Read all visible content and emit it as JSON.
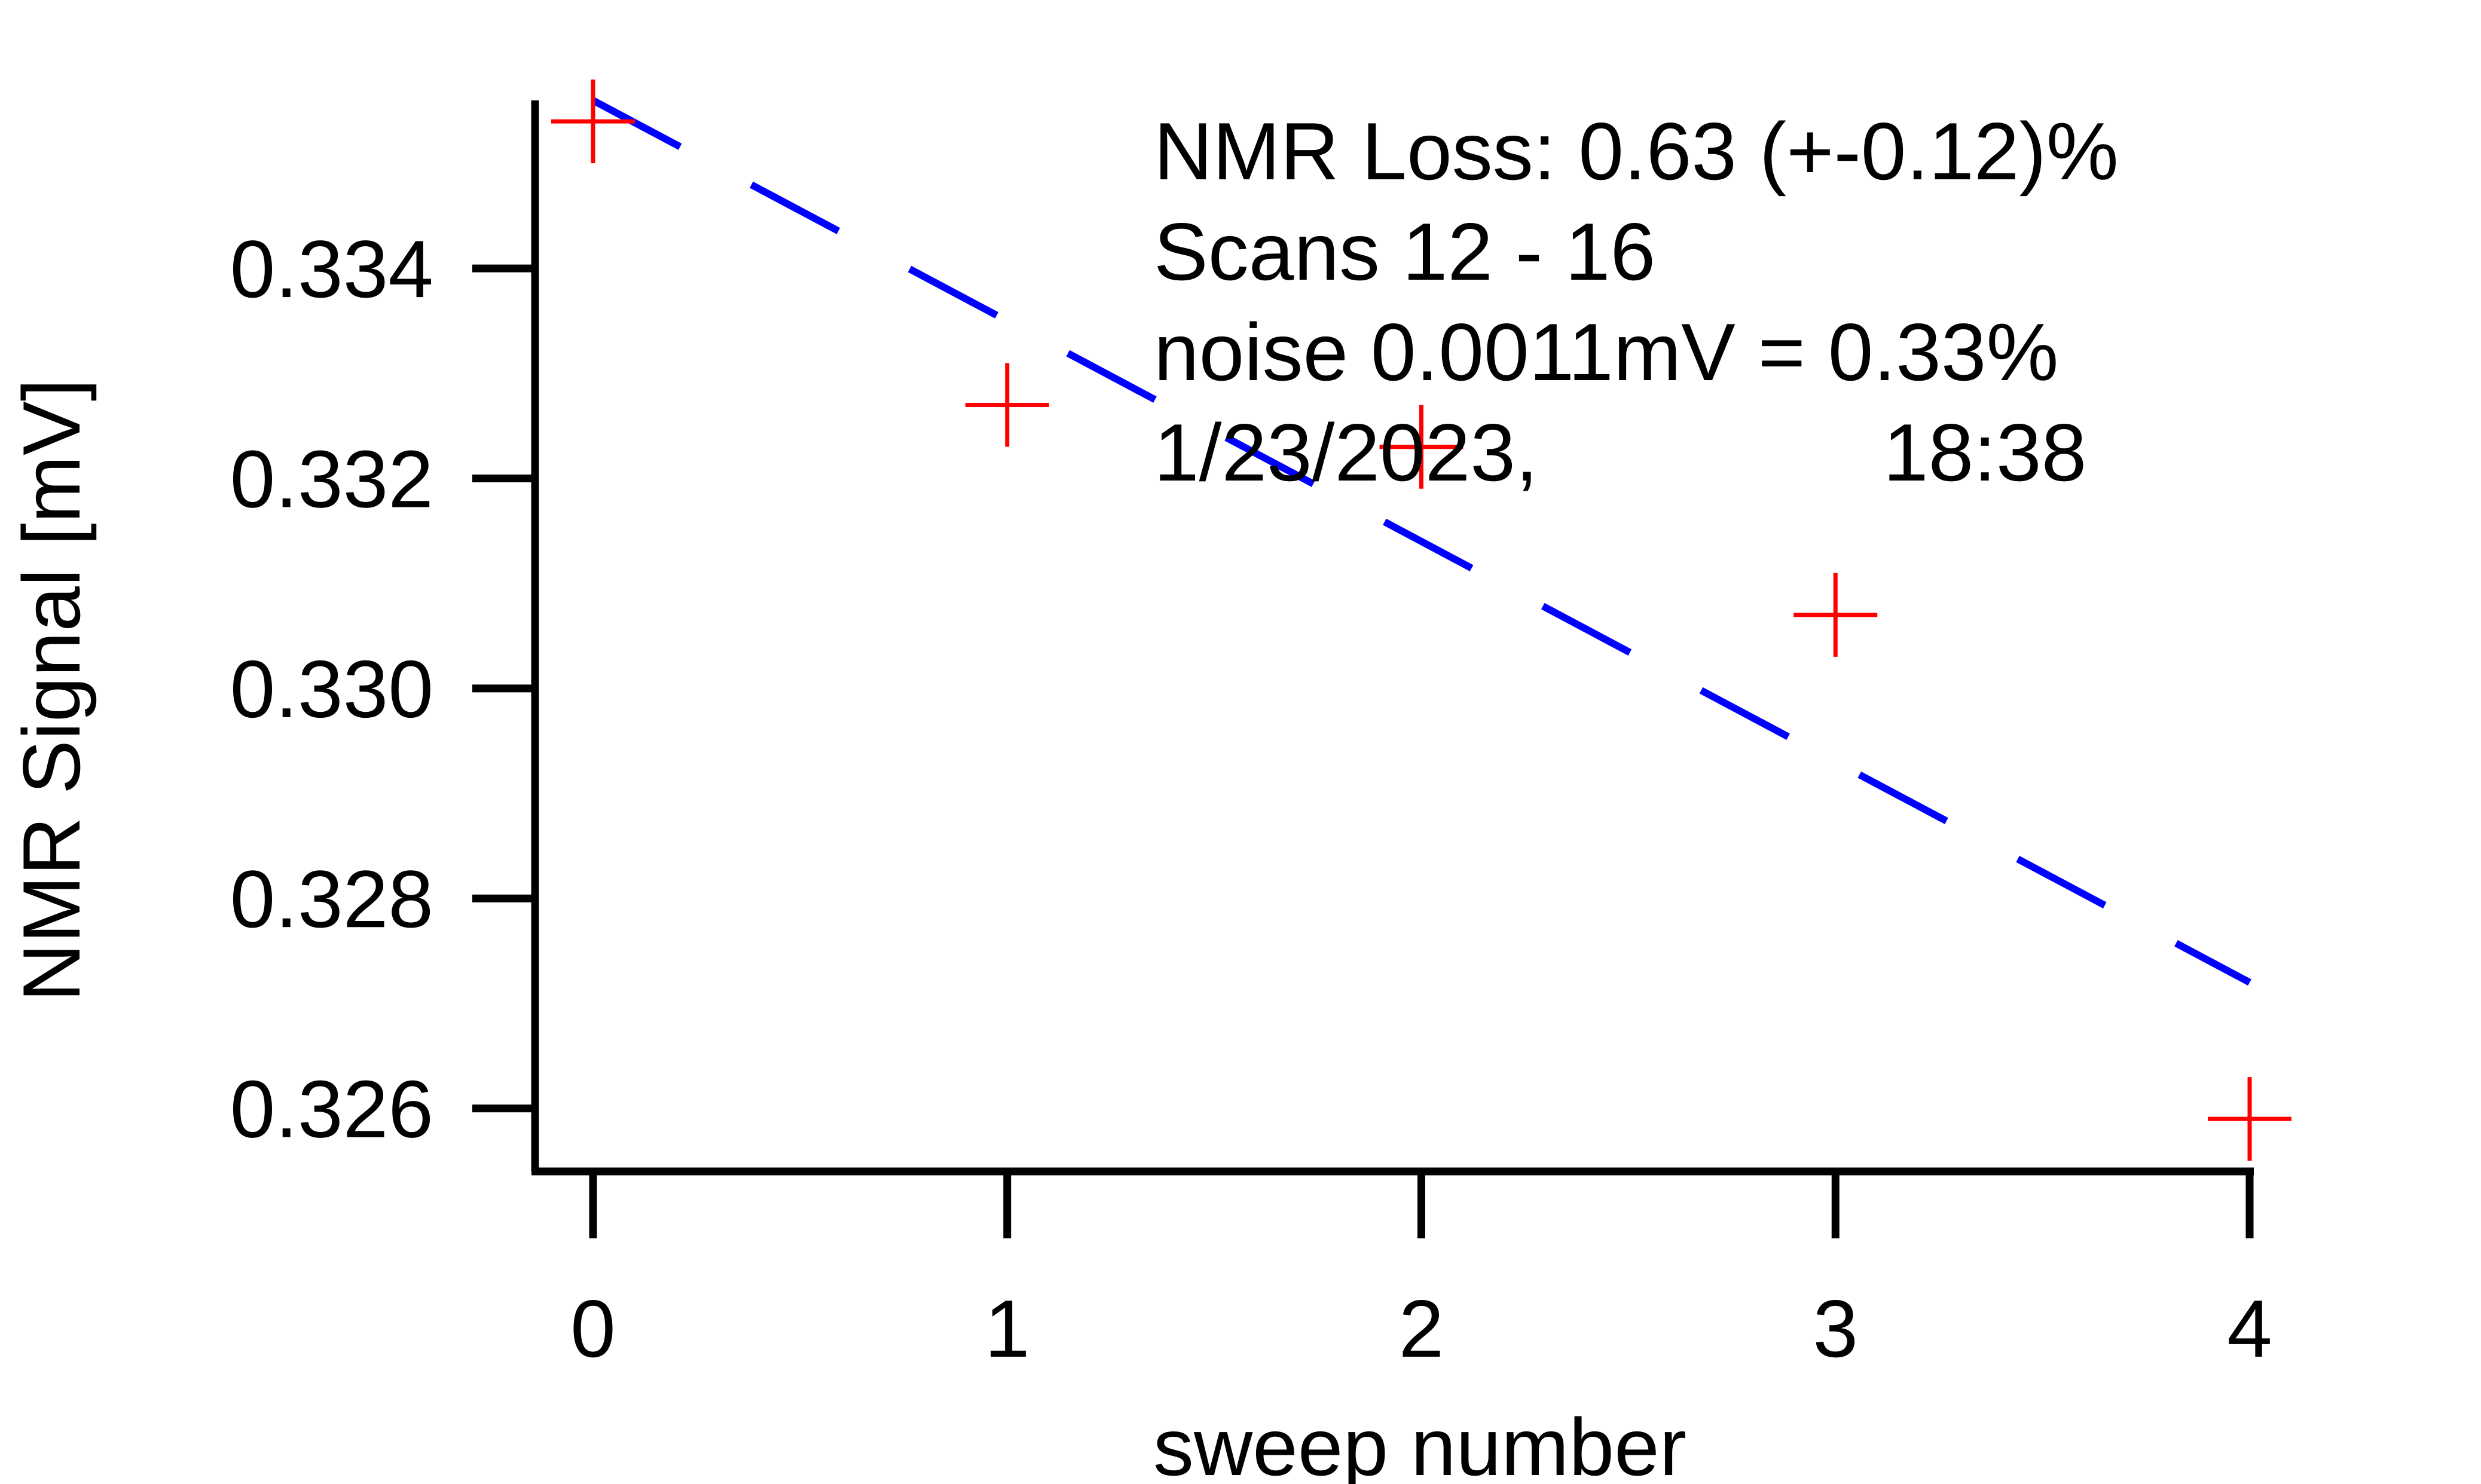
{
  "chart_data": {
    "type": "scatter",
    "xlabel": "sweep number",
    "ylabel": "NMR Signal [mV]",
    "xlim": [
      -0.14,
      4.0
    ],
    "ylim": [
      0.3254,
      0.3356
    ],
    "x_ticks": [
      0,
      1,
      2,
      3,
      4
    ],
    "x_tick_labels": [
      "0",
      "1",
      "2",
      "3",
      "4"
    ],
    "y_ticks": [
      0.326,
      0.328,
      0.33,
      0.332,
      0.334
    ],
    "y_tick_labels": [
      "0.326",
      "0.328",
      "0.330",
      "0.332",
      "0.334"
    ],
    "grid": false,
    "series": [
      {
        "marker": "plus",
        "color": "#ff0000",
        "x": [
          0,
          1,
          2,
          3,
          4
        ],
        "y": [
          0.3354,
          0.3327,
          0.3323,
          0.3307,
          0.3259
        ]
      },
      {
        "line_style": "dashed",
        "color": "#0000ff",
        "x": [
          0,
          4
        ],
        "y": [
          0.3356,
          0.3272
        ]
      }
    ],
    "annotations": [
      "NMR Loss: 0.63 (+-0.12)%",
      "Scans 12 - 16",
      "noise 0.0011mV = 0.33%",
      "1/23/2023,",
      "18:38"
    ]
  }
}
